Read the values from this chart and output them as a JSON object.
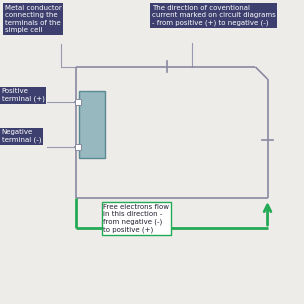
{
  "bg_color": "#eeece8",
  "box_bg": "#3d3f6e",
  "box_text_color": "#ffffff",
  "green_color": "#22aa55",
  "circuit_color": "#8888a0",
  "cell_color": "#96b8be",
  "cell_border": "#5a8a92",
  "connector_color": "#9999b0",
  "label1_text": "Metal conductor\nconnecting the\nterminals of the\nsimple cell",
  "label2_text": "The direction of coventional\ncurrent marked on circuit diagrams\n- from positive (+) to negative (-)",
  "label3_text": "Positive\nterminal (+)",
  "label4_text": "Negative\nterminal (-)",
  "label5_text": "Free electrons flow\nin this direction -\nfrom negative (-)\nto positive (+)",
  "figsize": [
    3.04,
    3.04
  ],
  "dpi": 100,
  "xlim": [
    0,
    10
  ],
  "ylim": [
    0,
    10
  ]
}
